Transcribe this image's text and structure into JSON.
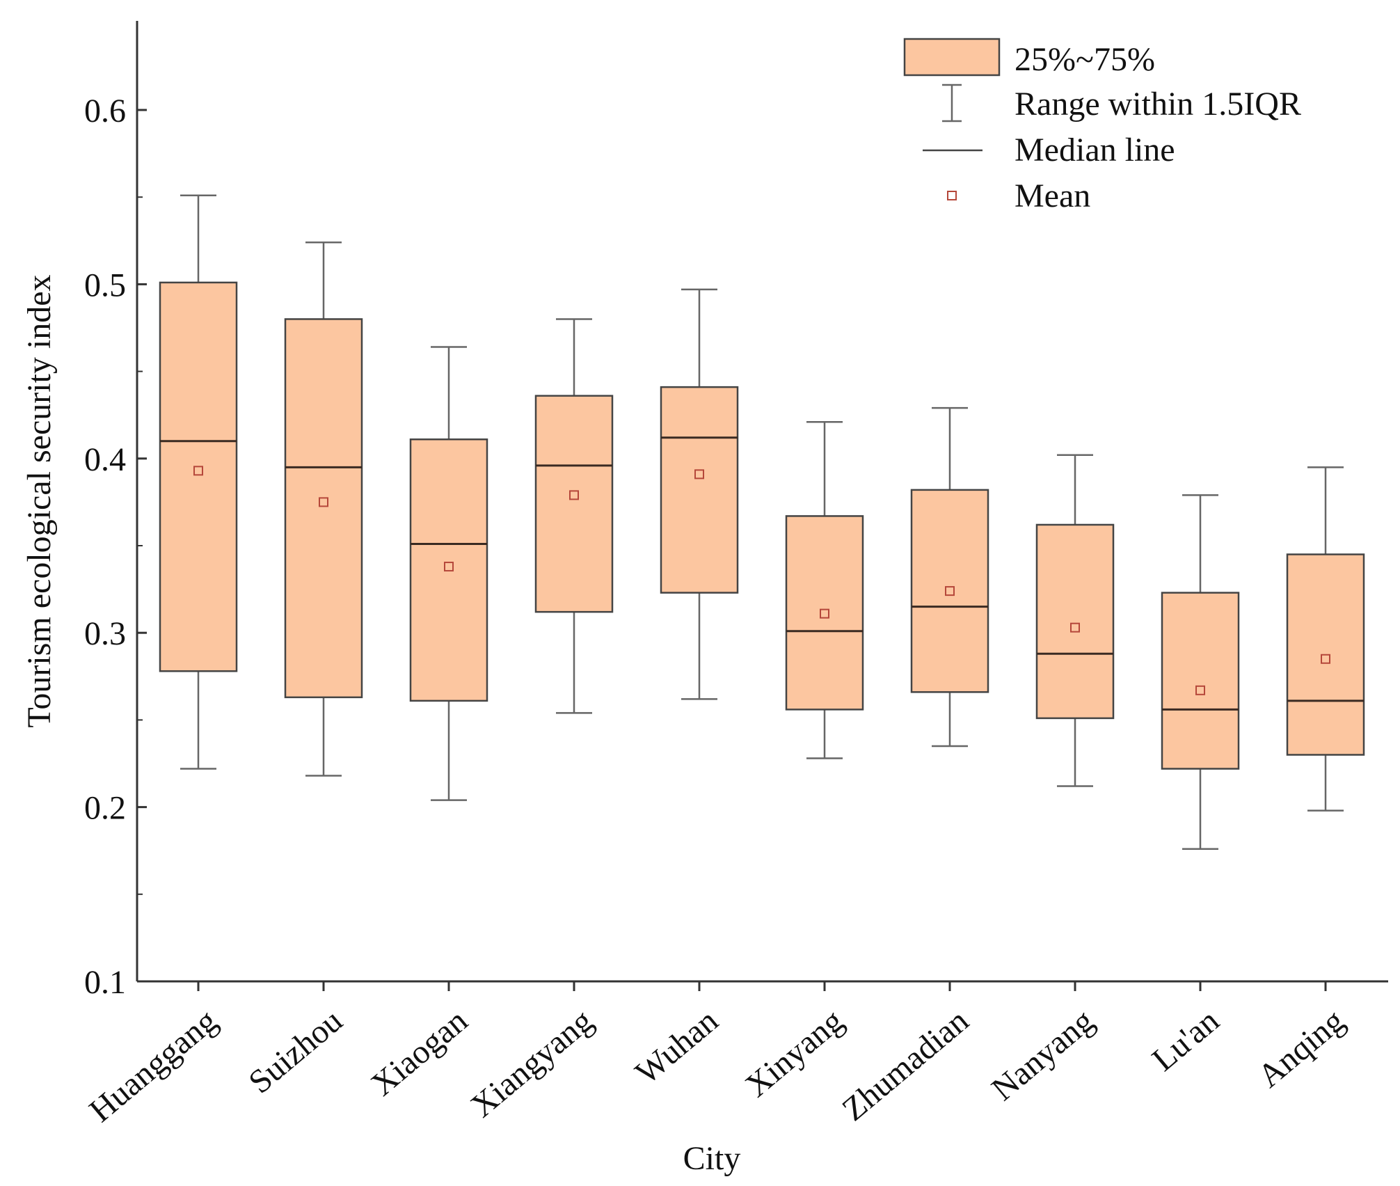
{
  "chart_data": {
    "type": "boxplot",
    "title": "",
    "xlabel": "City",
    "ylabel": "Tourism ecological security index",
    "ylim": [
      0.1,
      0.65
    ],
    "yticks": [
      0.1,
      0.2,
      0.3,
      0.4,
      0.5,
      0.6
    ],
    "ytick_labels": [
      "0.1",
      "0.2",
      "0.3",
      "0.4",
      "0.5",
      "0.6"
    ],
    "minor_yticks": [
      0.15,
      0.25,
      0.35,
      0.45,
      0.55
    ],
    "box_fill": "#FCC6A0",
    "box_stroke": "#444444",
    "whisker_color": "#666666",
    "mean_marker_color": "#B5473A",
    "categories": [
      "Huanggang",
      "Suizhou",
      "Xiaogan",
      "Xiangyang",
      "Wuhan",
      "Xinyang",
      "Zhumadian",
      "Nanyang",
      "Lu'an",
      "Anqing"
    ],
    "boxes": [
      {
        "city": "Huanggang",
        "whisker_low": 0.222,
        "q1": 0.278,
        "median": 0.41,
        "q3": 0.501,
        "whisker_high": 0.551,
        "mean": 0.393
      },
      {
        "city": "Suizhou",
        "whisker_low": 0.218,
        "q1": 0.263,
        "median": 0.395,
        "q3": 0.48,
        "whisker_high": 0.524,
        "mean": 0.375
      },
      {
        "city": "Xiaogan",
        "whisker_low": 0.204,
        "q1": 0.261,
        "median": 0.351,
        "q3": 0.411,
        "whisker_high": 0.464,
        "mean": 0.338
      },
      {
        "city": "Xiangyang",
        "whisker_low": 0.254,
        "q1": 0.312,
        "median": 0.396,
        "q3": 0.436,
        "whisker_high": 0.48,
        "mean": 0.379
      },
      {
        "city": "Wuhan",
        "whisker_low": 0.262,
        "q1": 0.323,
        "median": 0.412,
        "q3": 0.441,
        "whisker_high": 0.497,
        "mean": 0.391
      },
      {
        "city": "Xinyang",
        "whisker_low": 0.228,
        "q1": 0.256,
        "median": 0.301,
        "q3": 0.367,
        "whisker_high": 0.421,
        "mean": 0.311
      },
      {
        "city": "Zhumadian",
        "whisker_low": 0.235,
        "q1": 0.266,
        "median": 0.315,
        "q3": 0.382,
        "whisker_high": 0.429,
        "mean": 0.324
      },
      {
        "city": "Nanyang",
        "whisker_low": 0.212,
        "q1": 0.251,
        "median": 0.288,
        "q3": 0.362,
        "whisker_high": 0.402,
        "mean": 0.303
      },
      {
        "city": "Lu'an",
        "whisker_low": 0.176,
        "q1": 0.222,
        "median": 0.256,
        "q3": 0.323,
        "whisker_high": 0.379,
        "mean": 0.267
      },
      {
        "city": "Anqing",
        "whisker_low": 0.198,
        "q1": 0.23,
        "median": 0.261,
        "q3": 0.345,
        "whisker_high": 0.395,
        "mean": 0.285
      }
    ],
    "legend": {
      "placement": "top-right",
      "entries": [
        "25%~75%",
        "Range within 1.5IQR",
        "Median line",
        "Mean"
      ]
    }
  }
}
